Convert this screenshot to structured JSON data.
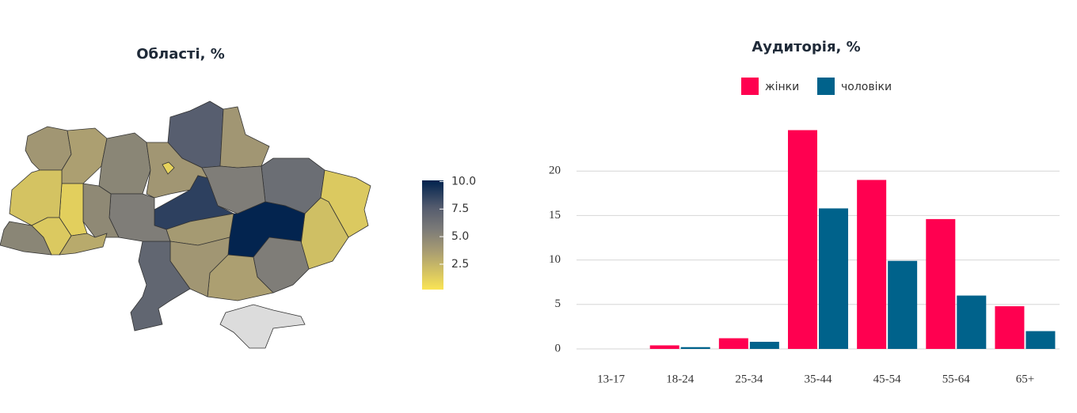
{
  "charts": [
    {
      "type": "choropleth",
      "title": "Області, %",
      "values": [
        4,
        3.5,
        5,
        7.5,
        4,
        4,
        6.5,
        1.5,
        2,
        5.5,
        8.8,
        3.8,
        10,
        5.5,
        3.5,
        4,
        7,
        5.5,
        4.8,
        1.2,
        1.8,
        5,
        1.5,
        3,
        1,
        null
      ],
      "colorlim": [
        0.2,
        10.1
      ],
      "colorticks": [
        {
          "value": 2.5,
          "label": "2.5"
        },
        {
          "value": 5,
          "label": "5.0"
        },
        {
          "value": 7.5,
          "label": "7.5"
        },
        {
          "value": 10,
          "label": "10.0"
        }
      ]
    },
    {
      "type": "bar",
      "title": "Аудиторія, %",
      "categories": [
        "13-17",
        "18-24",
        "25-34",
        "35-44",
        "45-54",
        "55-64",
        "65+"
      ],
      "series": [
        {
          "name": "жінки",
          "color": "#ff0050",
          "values": [
            0,
            0.4,
            1.2,
            24.6,
            19.0,
            14.6,
            4.8
          ]
        },
        {
          "name": "чоловіки",
          "color": "#00628b",
          "values": [
            0,
            0.2,
            0.8,
            15.8,
            9.9,
            6.0,
            2.0
          ]
        }
      ],
      "ylim": [
        0,
        25
      ],
      "yticks": [
        0,
        5,
        10,
        15,
        20
      ],
      "grid": true
    }
  ]
}
